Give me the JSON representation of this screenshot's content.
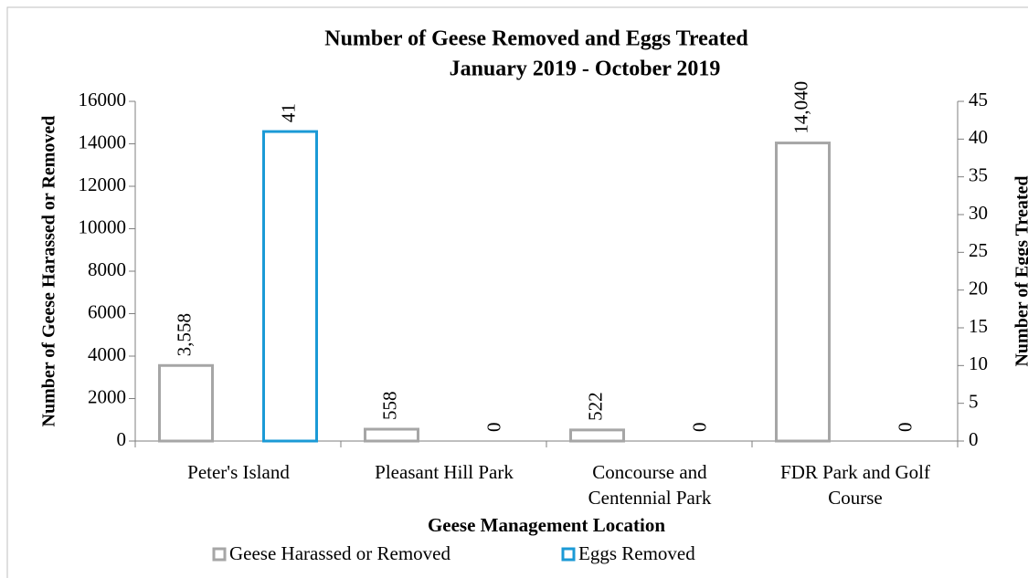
{
  "chart_data": {
    "type": "bar",
    "title": "Number of Geese Removed and Eggs Treated",
    "subtitle": "January 2019 - October 2019",
    "x_label": "Geese Management Location",
    "y_label": "Number of Geese  Harassed or Removed",
    "y2_label": "Number of Eggs Treated",
    "categories": [
      "Peter's Island",
      "Pleasant Hill Park",
      "Concourse and Centennial Park",
      "FDR Park and Golf Course"
    ],
    "series": [
      {
        "name": "Geese Harassed or Removed",
        "color": "#a6a6a6",
        "values": [
          3558,
          558,
          522,
          14040
        ],
        "value_labels": [
          "3,558",
          "558",
          "522",
          "14,040"
        ]
      },
      {
        "name": "Eggs Removed",
        "color": "#1b9ad6",
        "axis": "y2",
        "values": [
          41,
          0,
          0,
          0
        ],
        "value_labels": [
          "41",
          "0",
          "0",
          "0"
        ]
      }
    ],
    "ylim": [
      0,
      16000
    ],
    "yticks": [
      0,
      2000,
      4000,
      6000,
      8000,
      10000,
      12000,
      14000,
      16000
    ],
    "y2lim": [
      0,
      45
    ],
    "y2ticks": [
      0,
      5,
      10,
      15,
      20,
      25,
      30,
      35,
      40,
      45
    ],
    "legend": "bottom"
  }
}
